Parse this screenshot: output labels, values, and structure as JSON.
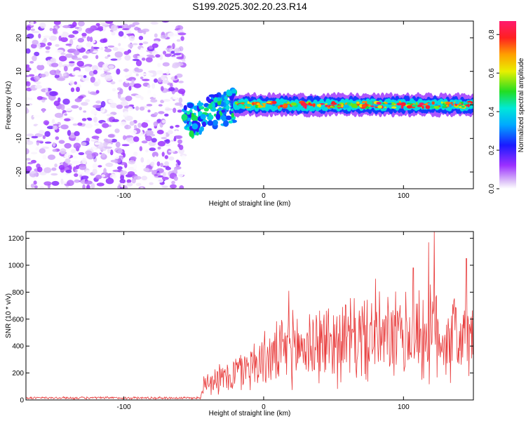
{
  "title": "S199.2025.302.20.23.R14",
  "colors": {
    "snr_line": "#e83a3a",
    "background": "#ffffff"
  },
  "chart_data": [
    {
      "type": "heatmap",
      "title": "S199.2025.302.20.23.R14",
      "xlabel": "Height of straight line (km)",
      "ylabel": "Frequency (Hz)",
      "xlim": [
        -170,
        150
      ],
      "ylim": [
        -25,
        25
      ],
      "x_ticks": [
        -100,
        0,
        100
      ],
      "x_tick_labels": [
        "-100",
        "0",
        "100"
      ],
      "y_ticks": [
        -20,
        -10,
        0,
        10,
        20
      ],
      "y_tick_labels": [
        "-20",
        "-10",
        "0",
        "10",
        "20"
      ],
      "colorbar": {
        "label": "Normalized spectral amplitude",
        "range": [
          0,
          0.87
        ],
        "ticks": [
          0.0,
          0.2,
          0.4,
          0.6,
          0.8
        ],
        "tick_labels": [
          "0.0",
          "0.2",
          "0.4",
          "0.6",
          "0.8"
        ],
        "colormap": "rainbow (white-violet-blue-cyan-green-yellow-orange-red-magenta)"
      },
      "features": [
        {
          "name": "noise region",
          "x_range": [
            -170,
            -57
          ],
          "y_range": [
            -25,
            25
          ],
          "amplitude": [
            0.0,
            0.15
          ]
        },
        {
          "name": "transition",
          "x_range": [
            -57,
            -20
          ],
          "center_y": -5,
          "amplitude": [
            0.2,
            0.5
          ]
        },
        {
          "name": "signal band",
          "x_range": [
            -20,
            150
          ],
          "center_y": 0,
          "width_hz": 4,
          "amplitude": [
            0.3,
            0.87
          ]
        }
      ]
    },
    {
      "type": "line",
      "xlabel": "Height of straight line (km)",
      "ylabel": "SNR (10 * v/v)",
      "xlim": [
        -170,
        150
      ],
      "ylim": [
        0,
        1250
      ],
      "x_ticks": [
        -100,
        0,
        100
      ],
      "x_tick_labels": [
        "-100",
        "0",
        "100"
      ],
      "y_ticks": [
        0,
        200,
        400,
        600,
        800,
        1000,
        1200
      ],
      "y_tick_labels": [
        "0",
        "200",
        "400",
        "600",
        "800",
        "1000",
        "1200"
      ],
      "series": [
        {
          "name": "SNR",
          "color": "#e83a3a",
          "profile_x": [
            -170,
            -45,
            -42,
            -30,
            -20,
            -10,
            0,
            10,
            20,
            30,
            40,
            50,
            60,
            70,
            80,
            90,
            100,
            110,
            120,
            130,
            140,
            150
          ],
          "profile_mean": [
            15,
            15,
            160,
            150,
            200,
            260,
            300,
            330,
            380,
            400,
            420,
            440,
            450,
            460,
            450,
            460,
            470,
            480,
            480,
            470,
            480,
            450
          ],
          "profile_spread": [
            10,
            10,
            120,
            130,
            170,
            200,
            220,
            260,
            300,
            320,
            330,
            340,
            340,
            350,
            340,
            350,
            360,
            380,
            400,
            380,
            380,
            350
          ],
          "peaks": [
            {
              "x": 18,
              "y": 810
            },
            {
              "x": 80,
              "y": 900
            },
            {
              "x": 107,
              "y": 980
            },
            {
              "x": 118,
              "y": 1170
            },
            {
              "x": 122,
              "y": 1250
            },
            {
              "x": 145,
              "y": 1050
            }
          ]
        }
      ]
    }
  ]
}
